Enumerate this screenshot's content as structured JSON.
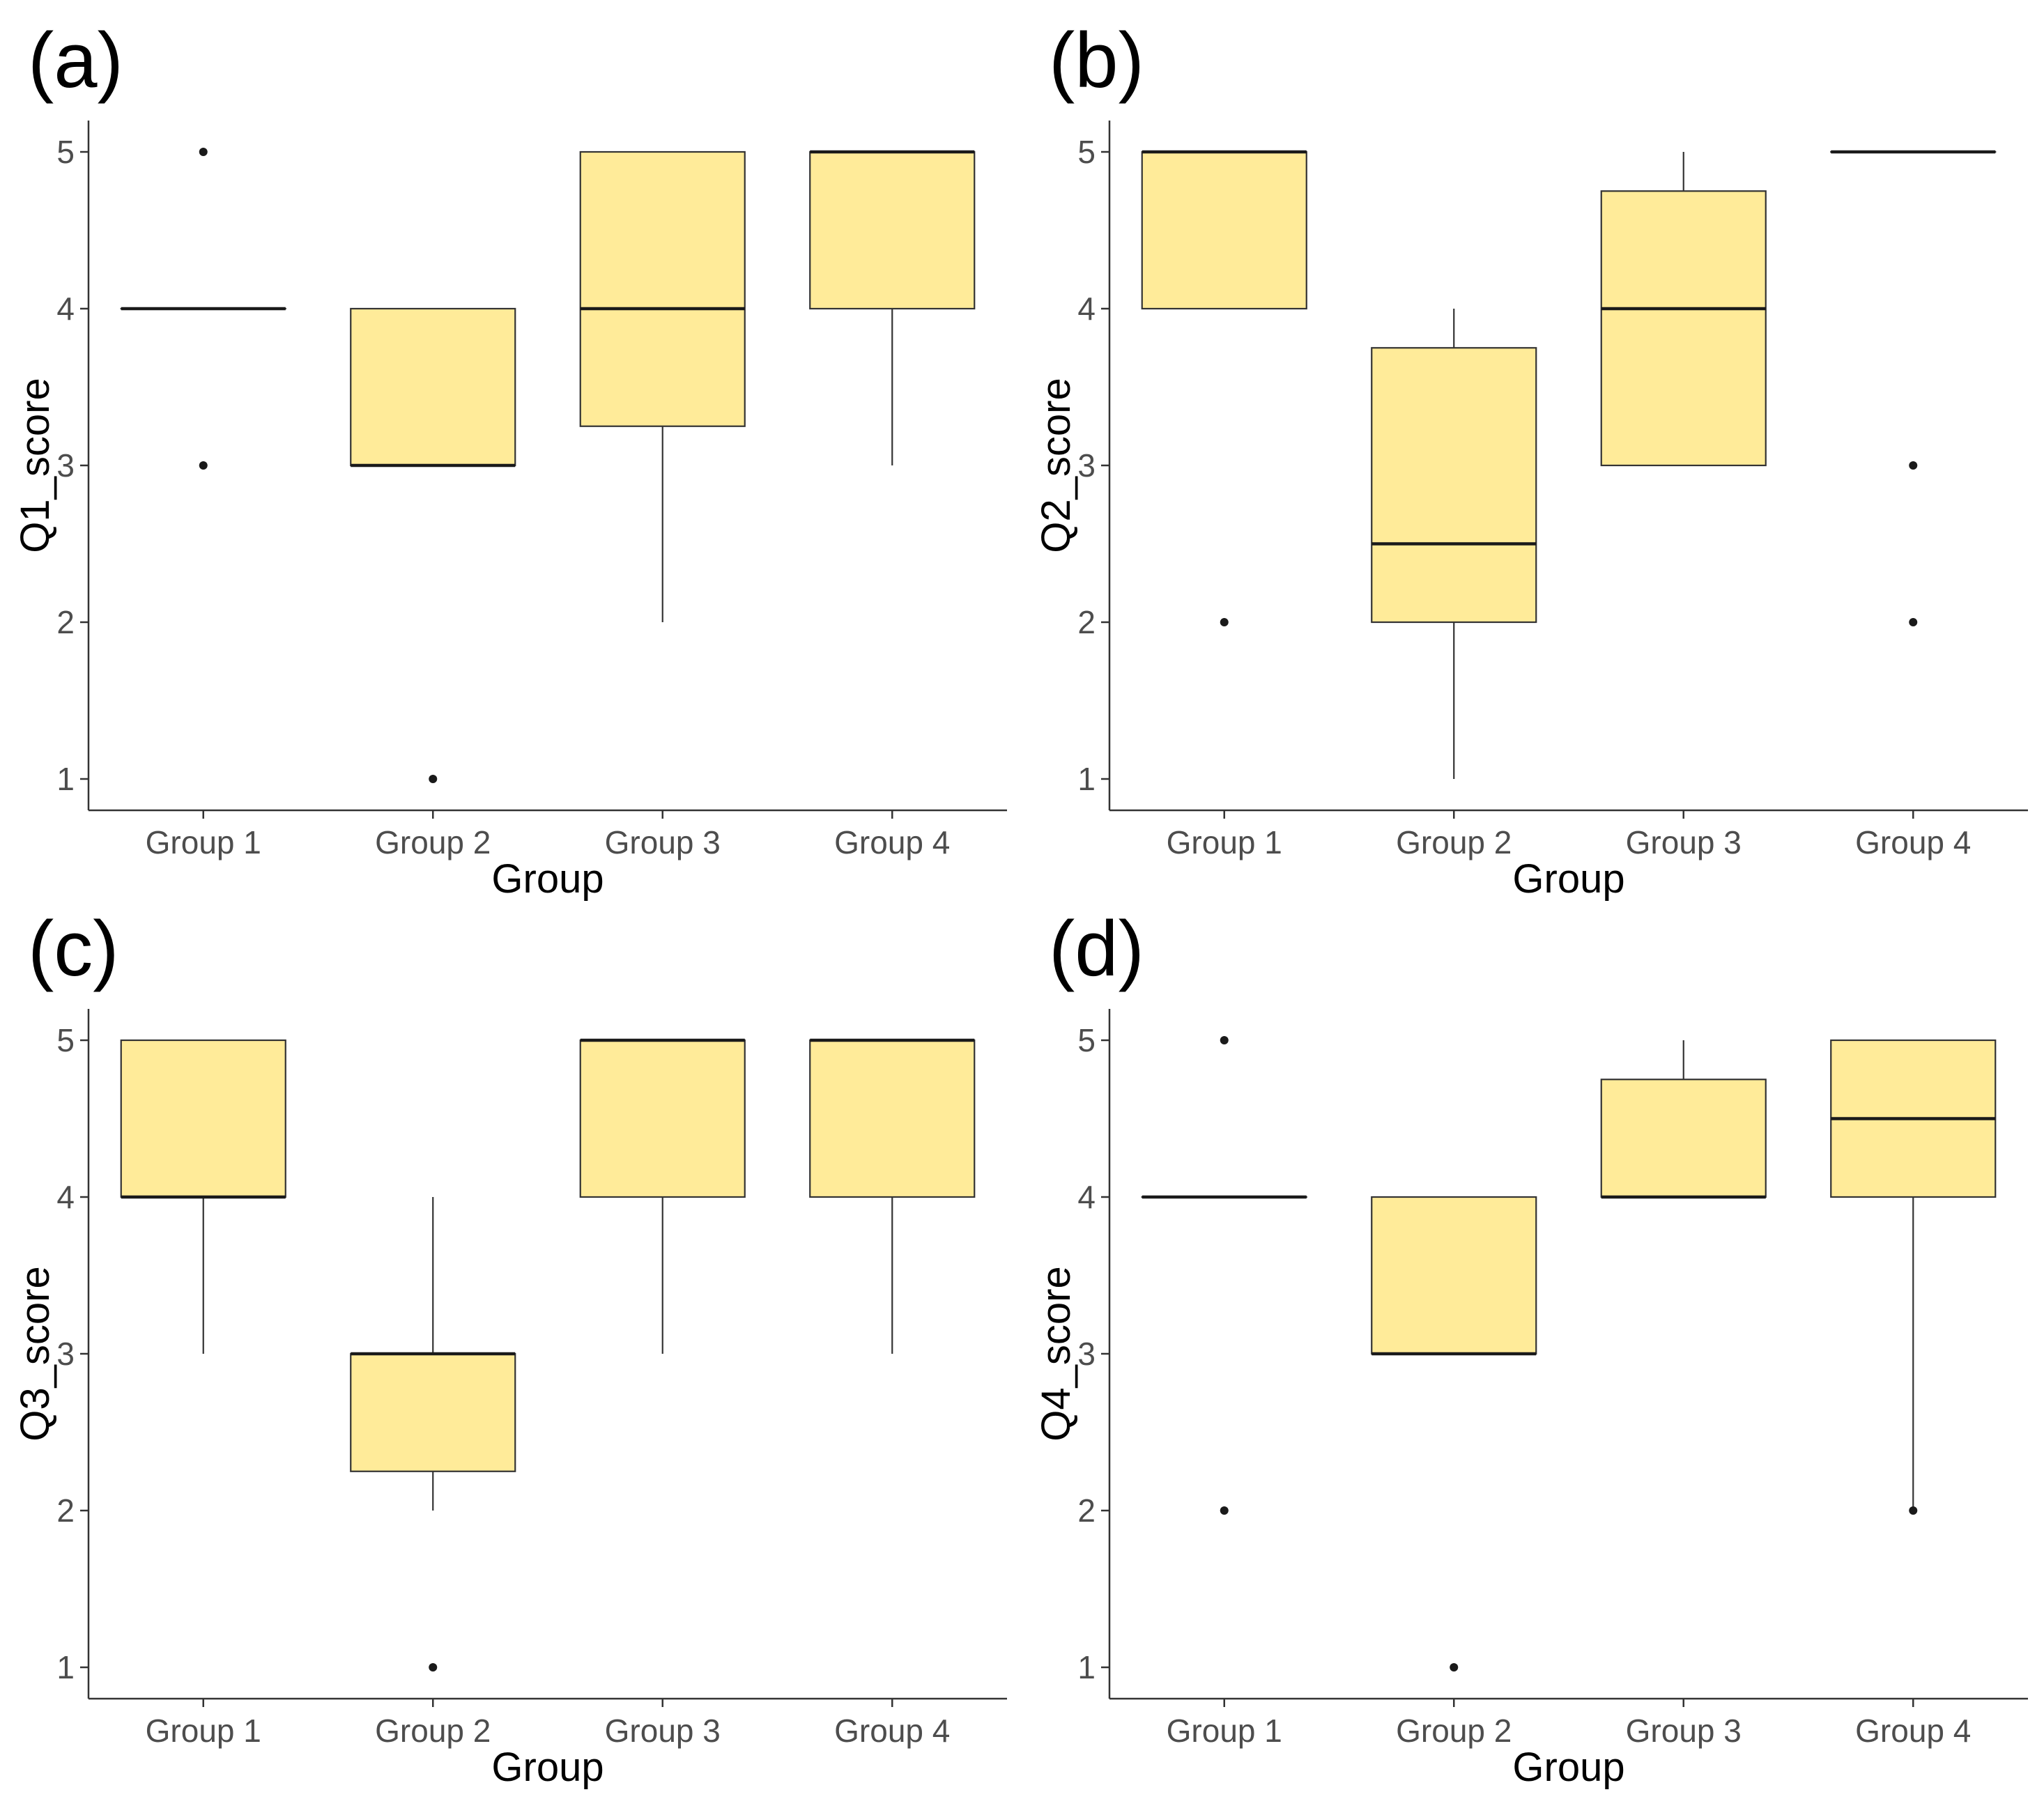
{
  "chart_data": [
    {
      "type": "boxplot",
      "panel": "(a)",
      "xlabel": "Group",
      "ylabel": "Q1_score",
      "categories": [
        "Group 1",
        "Group 2",
        "Group 3",
        "Group 4"
      ],
      "ylim": [
        0.8,
        5.2
      ],
      "yticks": [
        1,
        2,
        3,
        4,
        5
      ],
      "boxes": [
        {
          "q1": 4,
          "median": 4,
          "q3": 4,
          "whisker_low": 4,
          "whisker_high": 4,
          "outliers": [
            5,
            3
          ]
        },
        {
          "q1": 3,
          "median": 3,
          "q3": 4,
          "whisker_low": 3,
          "whisker_high": 4,
          "outliers": [
            1
          ]
        },
        {
          "q1": 3.25,
          "median": 4,
          "q3": 5,
          "whisker_low": 2,
          "whisker_high": 5,
          "outliers": []
        },
        {
          "q1": 4,
          "median": 5,
          "q3": 5,
          "whisker_low": 3,
          "whisker_high": 5,
          "outliers": []
        }
      ]
    },
    {
      "type": "boxplot",
      "panel": "(b)",
      "xlabel": "Group",
      "ylabel": "Q2_score",
      "categories": [
        "Group 1",
        "Group 2",
        "Group 3",
        "Group 4"
      ],
      "ylim": [
        0.8,
        5.2
      ],
      "yticks": [
        1,
        2,
        3,
        4,
        5
      ],
      "boxes": [
        {
          "q1": 4,
          "median": 5,
          "q3": 5,
          "whisker_low": 4,
          "whisker_high": 5,
          "outliers": [
            2
          ]
        },
        {
          "q1": 2,
          "median": 2.5,
          "q3": 3.75,
          "whisker_low": 1,
          "whisker_high": 4,
          "outliers": []
        },
        {
          "q1": 3,
          "median": 4,
          "q3": 4.75,
          "whisker_low": 3,
          "whisker_high": 5,
          "outliers": []
        },
        {
          "q1": 5,
          "median": 5,
          "q3": 5,
          "whisker_low": 5,
          "whisker_high": 5,
          "outliers": [
            3,
            2
          ]
        }
      ]
    },
    {
      "type": "boxplot",
      "panel": "(c)",
      "xlabel": "Group",
      "ylabel": "Q3_score",
      "categories": [
        "Group 1",
        "Group 2",
        "Group 3",
        "Group 4"
      ],
      "ylim": [
        0.8,
        5.2
      ],
      "yticks": [
        1,
        2,
        3,
        4,
        5
      ],
      "boxes": [
        {
          "q1": 4,
          "median": 4,
          "q3": 5,
          "whisker_low": 3,
          "whisker_high": 5,
          "outliers": []
        },
        {
          "q1": 2.25,
          "median": 3,
          "q3": 3,
          "whisker_low": 2,
          "whisker_high": 4,
          "outliers": [
            1
          ]
        },
        {
          "q1": 4,
          "median": 5,
          "q3": 5,
          "whisker_low": 3,
          "whisker_high": 5,
          "outliers": []
        },
        {
          "q1": 4,
          "median": 5,
          "q3": 5,
          "whisker_low": 3,
          "whisker_high": 5,
          "outliers": []
        }
      ]
    },
    {
      "type": "boxplot",
      "panel": "(d)",
      "xlabel": "Group",
      "ylabel": "Q4_score",
      "categories": [
        "Group 1",
        "Group 2",
        "Group 3",
        "Group 4"
      ],
      "ylim": [
        0.8,
        5.2
      ],
      "yticks": [
        1,
        2,
        3,
        4,
        5
      ],
      "boxes": [
        {
          "q1": 4,
          "median": 4,
          "q3": 4,
          "whisker_low": 4,
          "whisker_high": 4,
          "outliers": [
            5,
            2
          ]
        },
        {
          "q1": 3,
          "median": 3,
          "q3": 4,
          "whisker_low": 3,
          "whisker_high": 4,
          "outliers": [
            1
          ]
        },
        {
          "q1": 4,
          "median": 4,
          "q3": 4.75,
          "whisker_low": 4,
          "whisker_high": 5,
          "outliers": []
        },
        {
          "q1": 4,
          "median": 4.5,
          "q3": 5,
          "whisker_low": 2,
          "whisker_high": 5,
          "outliers": [
            2
          ]
        }
      ]
    }
  ],
  "colors": {
    "box_fill": "#FFEB99",
    "box_stroke": "#333333",
    "median_stroke": "#1a1a1a",
    "axis": "#333333",
    "tick_text": "#4d4d4d",
    "title_text": "#000000"
  }
}
